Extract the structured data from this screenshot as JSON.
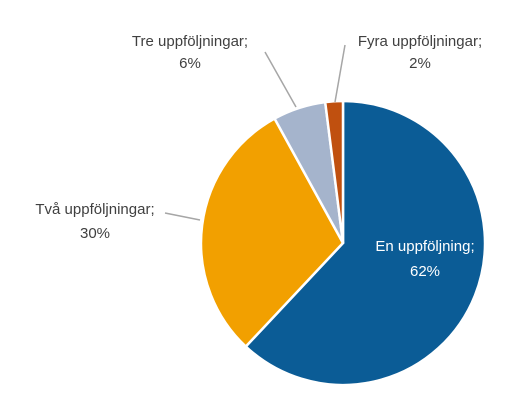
{
  "chart_data": {
    "type": "pie",
    "categories": [
      "En uppföljning;",
      "Två uppföljningar;",
      "Tre uppföljningar;",
      "Fyra uppföljningar;"
    ],
    "values": [
      62,
      30,
      6,
      2
    ],
    "value_labels": [
      "62%",
      "30%",
      "6%",
      "2%"
    ],
    "colors": [
      "#0b5c96",
      "#f2a000",
      "#a5b4cc",
      "#c0500f"
    ]
  }
}
